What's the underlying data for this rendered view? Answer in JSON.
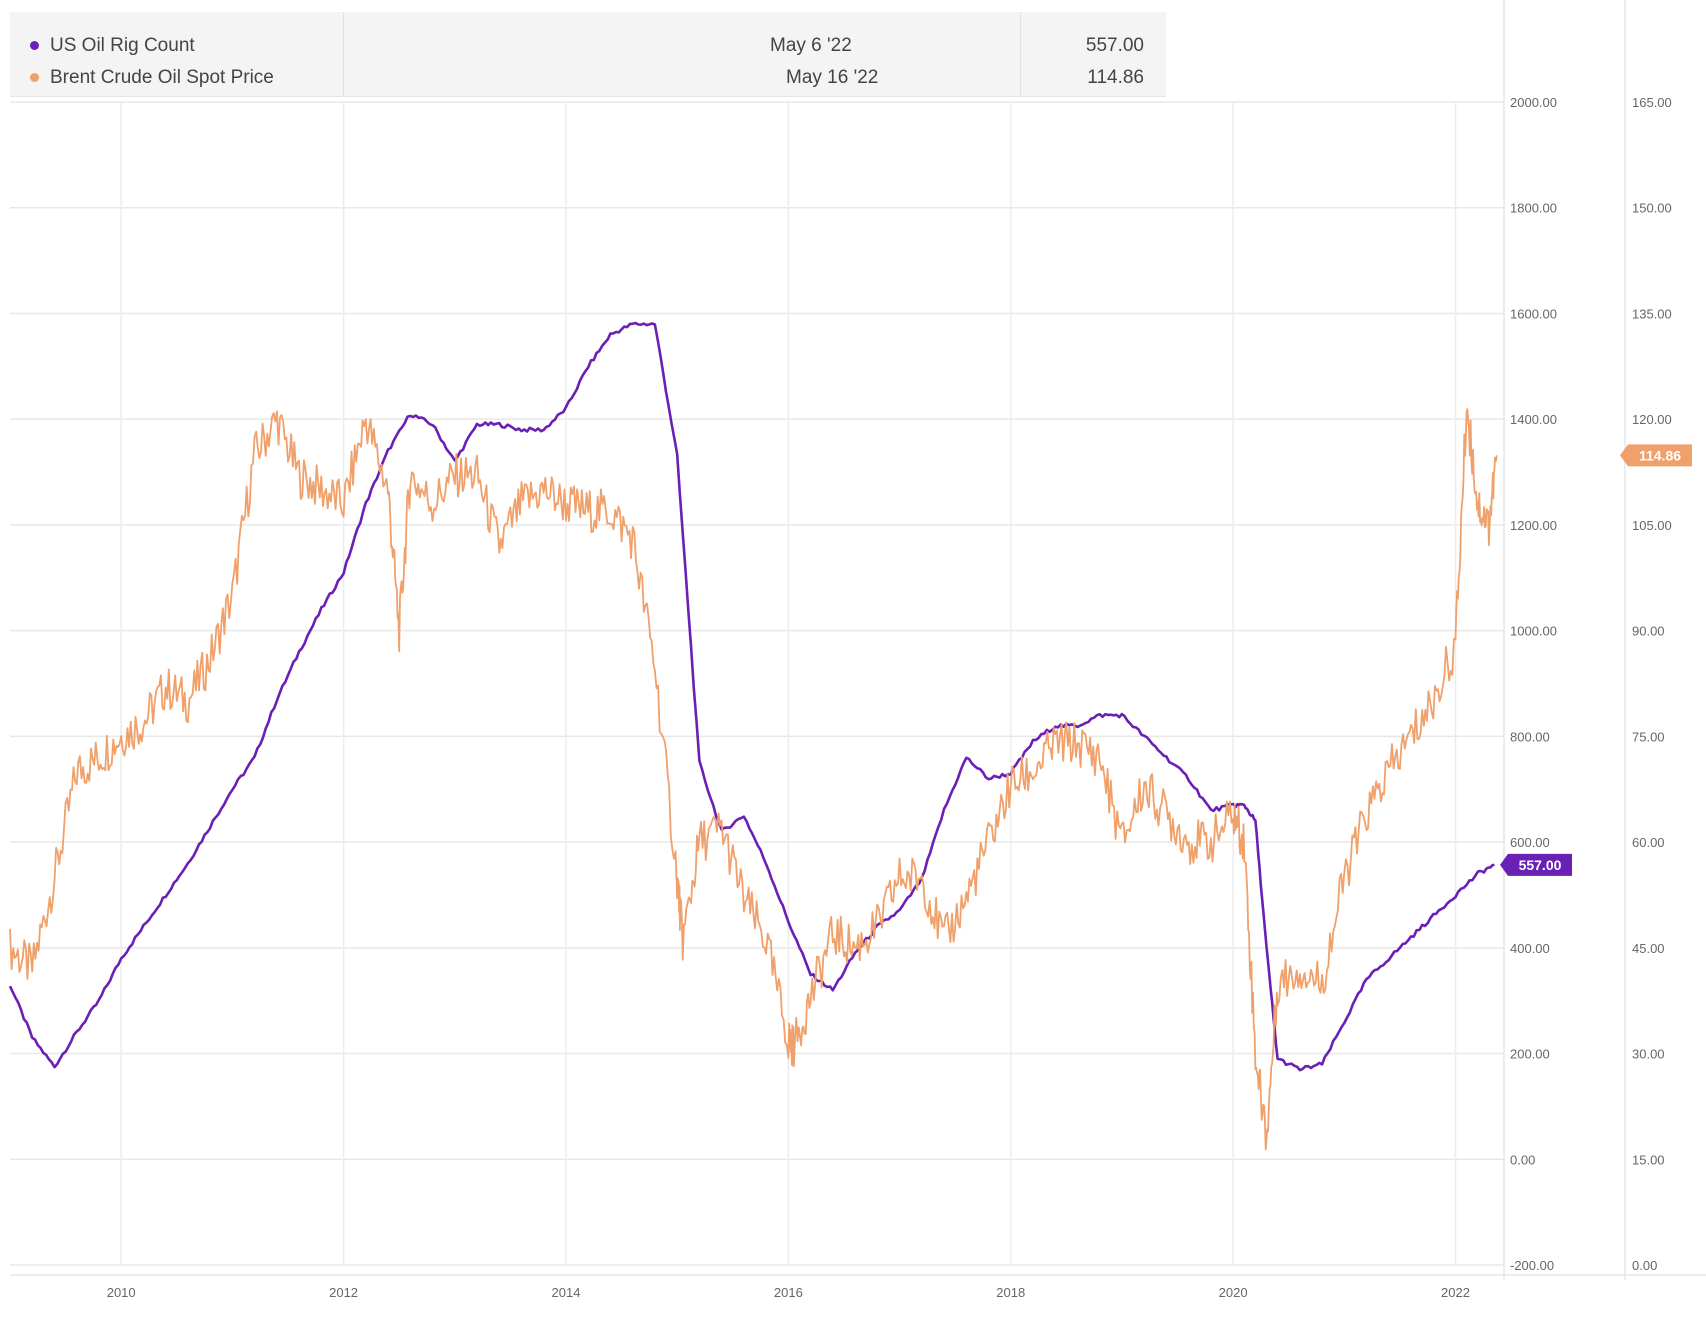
{
  "legend": {
    "rows": [
      {
        "name": "US Oil Rig Count",
        "date": "May 6 '22",
        "value": "557.00",
        "color": "#6a1fb5"
      },
      {
        "name": "Brent Crude Oil Spot Price",
        "date": "May 16 '22",
        "value": "114.86",
        "color": "#f0a06a"
      }
    ]
  },
  "chart_data": {
    "type": "line",
    "title": "",
    "xlabel": "",
    "ylabel": "",
    "xlim": [
      2009.0,
      2022.4
    ],
    "x_ticks": [
      "2010",
      "2012",
      "2014",
      "2016",
      "2018",
      "2020",
      "2022"
    ],
    "y_left": {
      "range": [
        -200,
        2000
      ],
      "ticks": [
        "2000.00",
        "1800.00",
        "1600.00",
        "1400.00",
        "1200.00",
        "1000.00",
        "800.00",
        "600.00",
        "400.00",
        "200.00",
        "0.00",
        "-200.00"
      ]
    },
    "y_right": {
      "range": [
        0,
        165
      ],
      "ticks": [
        "165.00",
        "150.00",
        "135.00",
        "120.00",
        "105.00",
        "90.00",
        "75.00",
        "60.00",
        "45.00",
        "30.00",
        "15.00",
        "0.00"
      ]
    },
    "grid": true,
    "series": [
      {
        "name": "US Oil Rig Count",
        "axis": "left",
        "color": "#6a1fb5",
        "last_value_label": "557.00",
        "x": [
          2009.0,
          2009.2,
          2009.4,
          2009.6,
          2009.8,
          2010.0,
          2010.2,
          2010.4,
          2010.6,
          2010.8,
          2011.0,
          2011.2,
          2011.4,
          2011.6,
          2011.8,
          2012.0,
          2012.2,
          2012.4,
          2012.6,
          2012.8,
          2013.0,
          2013.2,
          2013.4,
          2013.6,
          2013.8,
          2014.0,
          2014.2,
          2014.4,
          2014.6,
          2014.8,
          2015.0,
          2015.2,
          2015.4,
          2015.6,
          2015.8,
          2016.0,
          2016.2,
          2016.4,
          2016.6,
          2016.8,
          2017.0,
          2017.2,
          2017.4,
          2017.6,
          2017.8,
          2018.0,
          2018.2,
          2018.4,
          2018.6,
          2018.8,
          2019.0,
          2019.2,
          2019.4,
          2019.6,
          2019.8,
          2020.0,
          2020.1,
          2020.2,
          2020.3,
          2020.4,
          2020.6,
          2020.8,
          2021.0,
          2021.2,
          2021.4,
          2021.6,
          2021.8,
          2022.0,
          2022.2,
          2022.35
        ],
        "values": [
          330,
          230,
          175,
          240,
          300,
          380,
          440,
          500,
          560,
          630,
          700,
          760,
          870,
          960,
          1040,
          1110,
          1240,
          1340,
          1410,
          1390,
          1320,
          1390,
          1390,
          1380,
          1380,
          1420,
          1500,
          1560,
          1580,
          1580,
          1330,
          750,
          620,
          650,
          560,
          450,
          350,
          320,
          390,
          440,
          470,
          530,
          660,
          760,
          720,
          730,
          790,
          820,
          820,
          840,
          840,
          800,
          760,
          720,
          660,
          670,
          670,
          640,
          400,
          190,
          170,
          180,
          260,
          340,
          380,
          420,
          460,
          500,
          540,
          557
        ]
      },
      {
        "name": "Brent Crude Oil Spot Price",
        "axis": "right",
        "color": "#f0a06a",
        "last_value_label": "114.86",
        "x": [
          2009.0,
          2009.2,
          2009.4,
          2009.6,
          2009.8,
          2010.0,
          2010.2,
          2010.4,
          2010.6,
          2010.8,
          2011.0,
          2011.2,
          2011.4,
          2011.6,
          2011.8,
          2012.0,
          2012.2,
          2012.4,
          2012.5,
          2012.6,
          2012.8,
          2013.0,
          2013.2,
          2013.4,
          2013.6,
          2013.8,
          2014.0,
          2014.2,
          2014.4,
          2014.6,
          2014.8,
          2015.0,
          2015.05,
          2015.2,
          2015.4,
          2015.6,
          2015.8,
          2016.0,
          2016.05,
          2016.2,
          2016.4,
          2016.6,
          2016.8,
          2017.0,
          2017.2,
          2017.4,
          2017.6,
          2017.8,
          2018.0,
          2018.2,
          2018.4,
          2018.6,
          2018.8,
          2019.0,
          2019.2,
          2019.4,
          2019.6,
          2019.8,
          2020.0,
          2020.1,
          2020.2,
          2020.3,
          2020.4,
          2020.6,
          2020.8,
          2021.0,
          2021.2,
          2021.4,
          2021.6,
          2021.8,
          2022.0,
          2022.1,
          2022.2,
          2022.3,
          2022.37
        ],
        "values": [
          45,
          42,
          55,
          70,
          72,
          75,
          77,
          82,
          80,
          86,
          95,
          115,
          120,
          112,
          110,
          108,
          120,
          110,
          90,
          112,
          108,
          112,
          112,
          102,
          108,
          110,
          108,
          107,
          107,
          103,
          85,
          55,
          46,
          60,
          62,
          52,
          46,
          32,
          31,
          38,
          47,
          45,
          48,
          55,
          55,
          46,
          52,
          60,
          68,
          70,
          74,
          74,
          72,
          60,
          68,
          64,
          60,
          60,
          64,
          60,
          30,
          18,
          40,
          42,
          40,
          55,
          64,
          70,
          75,
          80,
          88,
          122,
          108,
          105,
          114.86
        ]
      }
    ]
  }
}
